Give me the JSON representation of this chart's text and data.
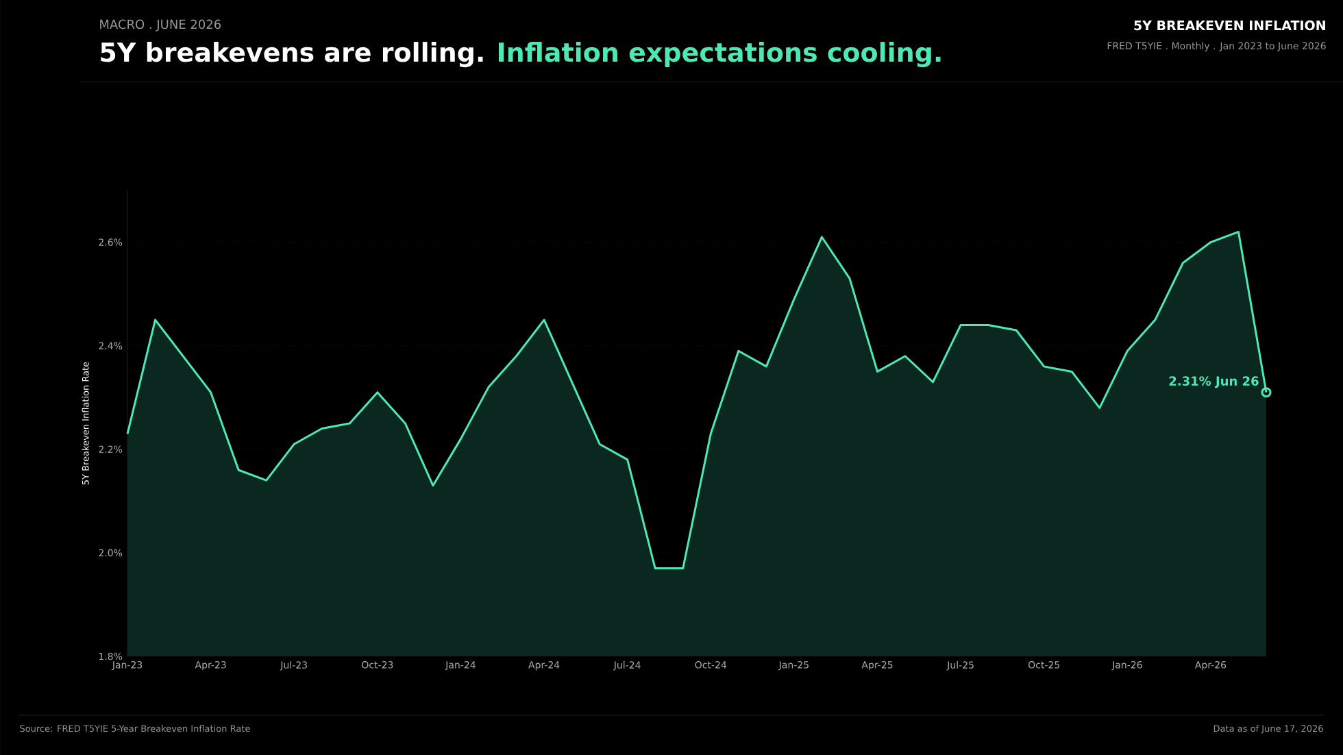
{
  "chart_data": {
    "type": "area",
    "title": "5Y breakevens are rolling.",
    "subtitle": "Inflation expectations cooling.",
    "ylabel": "5Y Breakeven Inflation Rate",
    "x": [
      "2023-01",
      "2023-02",
      "2023-03",
      "2023-04",
      "2023-05",
      "2023-06",
      "2023-07",
      "2023-08",
      "2023-09",
      "2023-10",
      "2023-11",
      "2023-12",
      "2024-01",
      "2024-02",
      "2024-03",
      "2024-04",
      "2024-05",
      "2024-06",
      "2024-07",
      "2024-08",
      "2024-09",
      "2024-10",
      "2024-11",
      "2024-12",
      "2025-01",
      "2025-02",
      "2025-03",
      "2025-04",
      "2025-05",
      "2025-06",
      "2025-07",
      "2025-08",
      "2025-09",
      "2025-10",
      "2025-11",
      "2025-12",
      "2026-01",
      "2026-02",
      "2026-03",
      "2026-04",
      "2026-05",
      "2026-06"
    ],
    "series": [
      {
        "color": "#4de8b4",
        "values": [
          2.23,
          2.45,
          2.38,
          2.31,
          2.16,
          2.14,
          2.21,
          2.24,
          2.25,
          2.31,
          2.25,
          2.13,
          2.22,
          2.32,
          2.38,
          2.45,
          2.33,
          2.21,
          2.18,
          1.97,
          1.97,
          2.23,
          2.39,
          2.36,
          2.49,
          2.61,
          2.53,
          2.35,
          2.38,
          2.33,
          2.44,
          2.44,
          2.43,
          2.36,
          2.35,
          2.28,
          2.39,
          2.45,
          2.56,
          2.6,
          2.62,
          2.31
        ]
      }
    ],
    "xlim": [
      "2023-01",
      "2026-06"
    ],
    "xticks": [
      {
        "value": "2023-01",
        "label": "Jan-23"
      },
      {
        "value": "2023-04",
        "label": "Apr-23"
      },
      {
        "value": "2023-07",
        "label": "Jul-23"
      },
      {
        "value": "2023-10",
        "label": "Oct-23"
      },
      {
        "value": "2024-01",
        "label": "Jan-24"
      },
      {
        "value": "2024-04",
        "label": "Apr-24"
      },
      {
        "value": "2024-07",
        "label": "Jul-24"
      },
      {
        "value": "2024-10",
        "label": "Oct-24"
      },
      {
        "value": "2025-01",
        "label": "Jan-25"
      },
      {
        "value": "2025-04",
        "label": "Apr-25"
      },
      {
        "value": "2025-07",
        "label": "Jul-25"
      },
      {
        "value": "2025-10",
        "label": "Oct-25"
      },
      {
        "value": "2026-01",
        "label": "Jan-26"
      },
      {
        "value": "2026-04",
        "label": "Apr-26"
      }
    ],
    "ylim": [
      1.8,
      2.7
    ],
    "yticks": [
      {
        "value": 1.8,
        "label": "1.8%"
      },
      {
        "value": 2.0,
        "label": "2.0%"
      },
      {
        "value": 2.2,
        "label": "2.2%"
      },
      {
        "value": 2.4,
        "label": "2.4%"
      },
      {
        "value": 2.6,
        "label": "2.6%"
      }
    ],
    "grid": "y",
    "annotations": [
      "MACRO   .   JUNE 2026",
      "5Y BREAKEVEN INFLATION",
      "FRED T5YIE . Monthly . Jan 2023 to June 2026",
      "Source: FRED T5YIE 5-Year Breakeven Inflation Rate",
      "Data as of June 17, 2026",
      {
        "text": "2.31% Jun 26",
        "x": "2026-06",
        "y": 2.31
      }
    ]
  }
}
